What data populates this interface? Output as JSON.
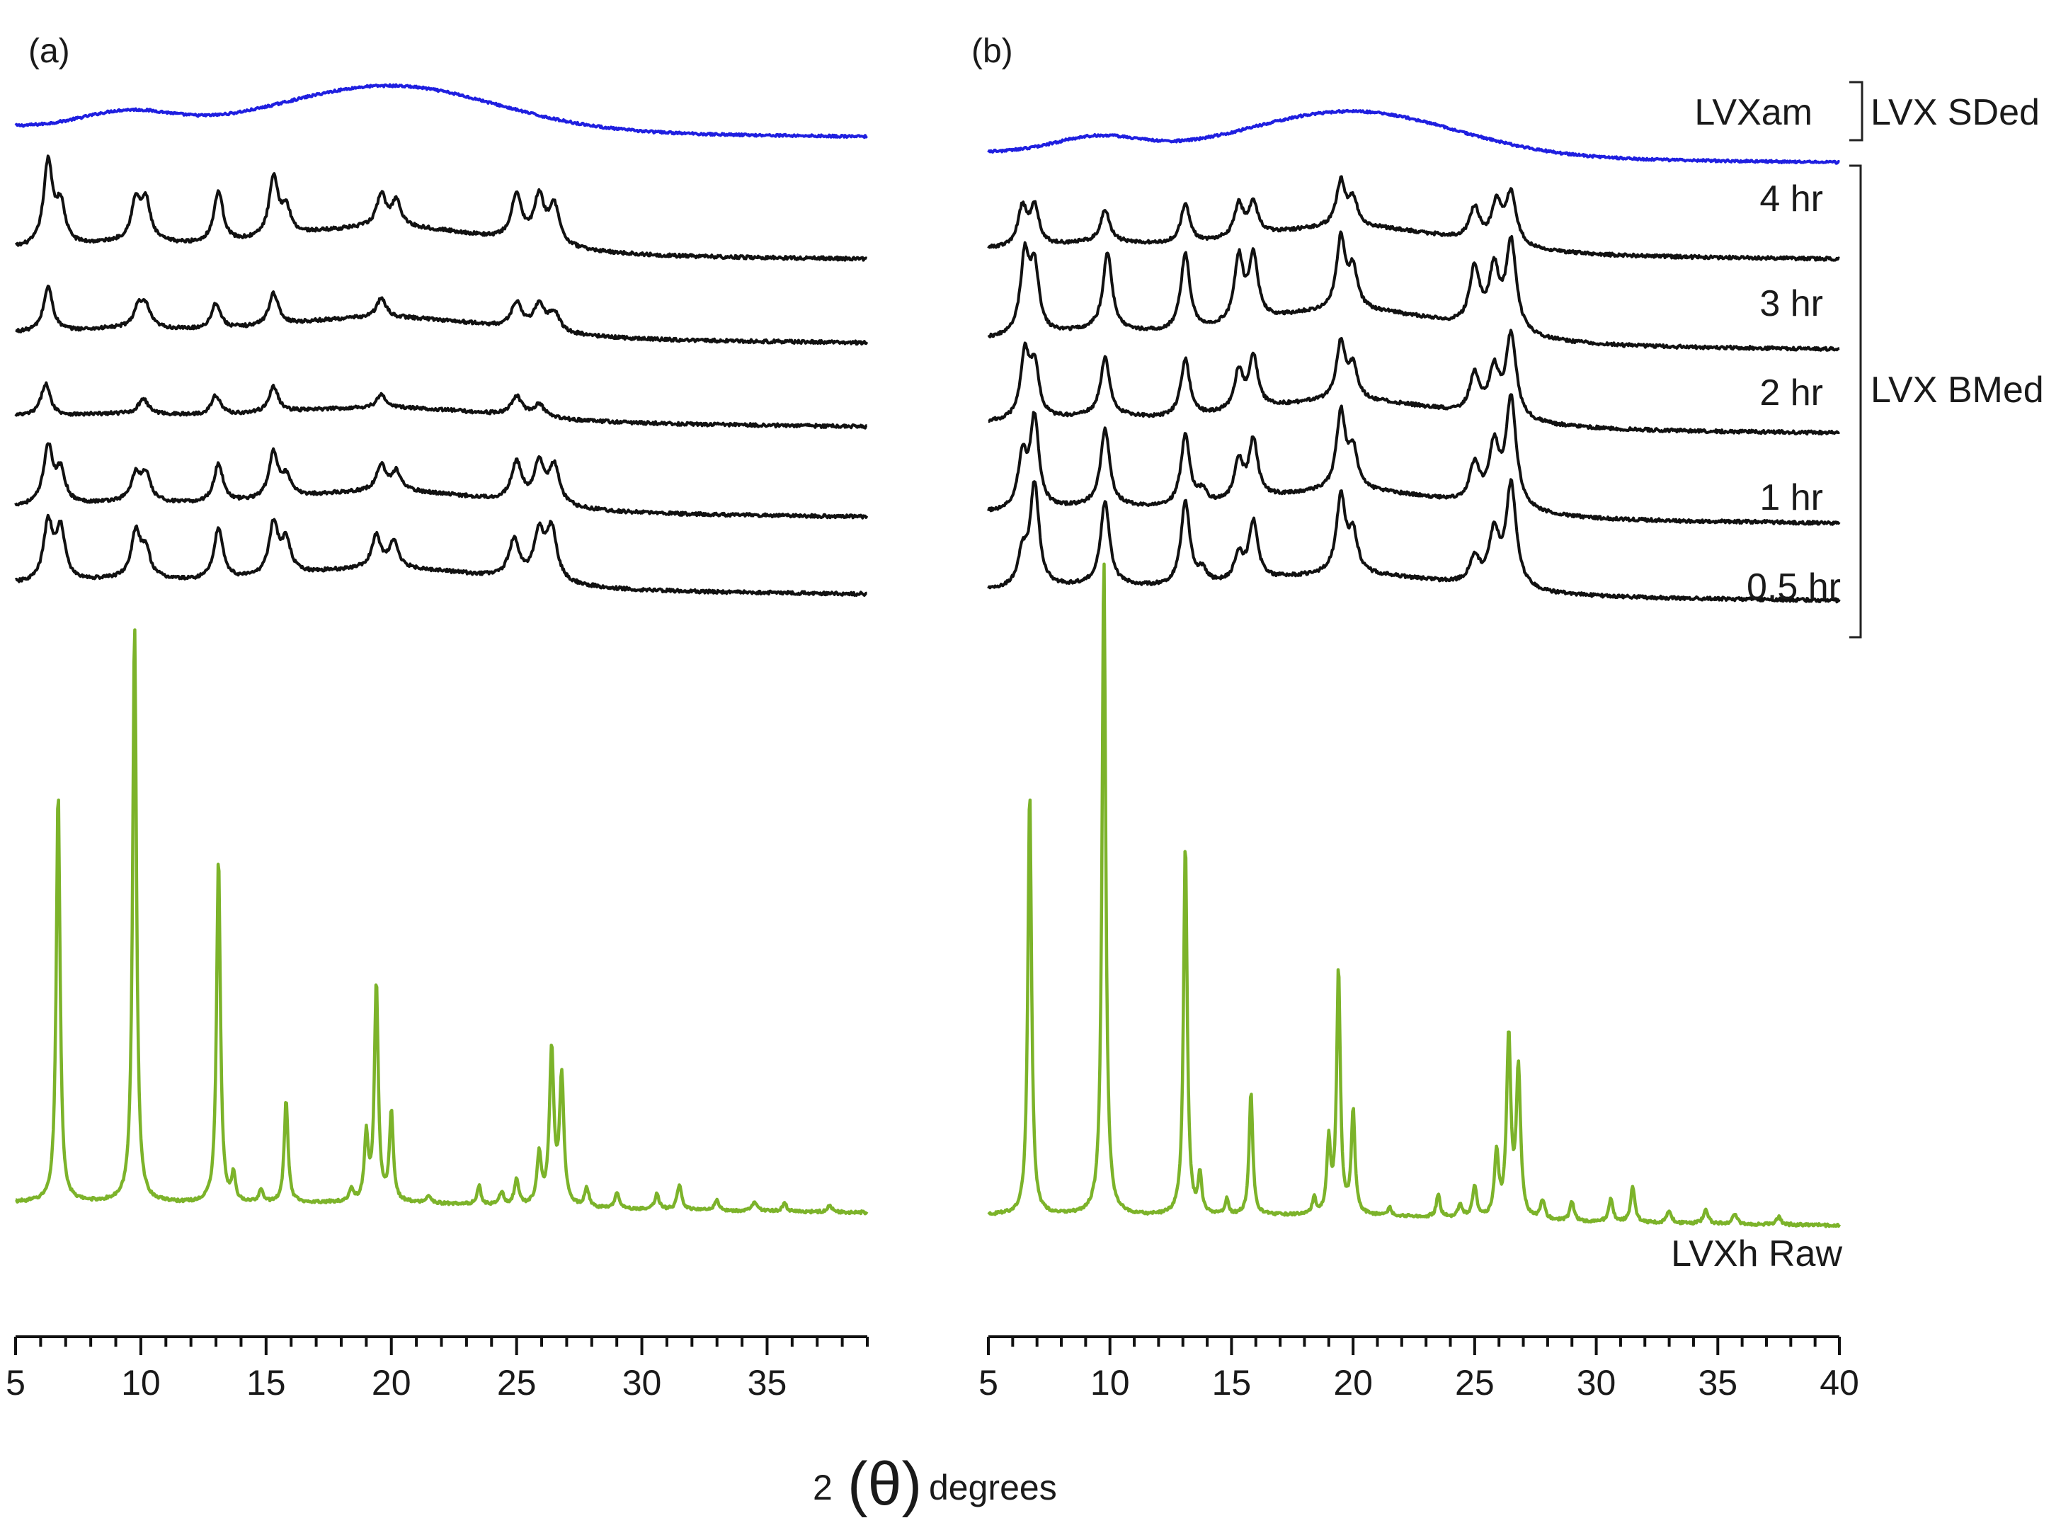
{
  "figure": {
    "xlabel_prefix": "2",
    "xlabel_symbol": "(θ)",
    "xlabel_suffix": "degrees",
    "colors": {
      "amorphous": "#1f1fe0",
      "milled": "#111111",
      "raw": "#7cb32a",
      "axis": "#111111"
    }
  },
  "chart_data": [
    {
      "type": "line",
      "panel_label": "(a)",
      "xlim": [
        5,
        39
      ],
      "xticks": [
        5,
        10,
        15,
        20,
        25,
        30,
        35
      ],
      "minor_step": 1,
      "series_order": [
        "LVXam",
        "4 hr",
        "3 hr",
        "2 hr",
        "1 hr",
        "0.5 hr",
        "LVXh Raw"
      ],
      "series": [
        {
          "name": "LVXam",
          "style": "amorphous",
          "baseline_ylevel": 0.065,
          "hump": 0.035,
          "peaks": []
        },
        {
          "name": "4 hr",
          "style": "milled",
          "baseline_ylevel": 0.16,
          "hump": 0.02,
          "peaks": [
            [
              6.3,
              0.065
            ],
            [
              6.8,
              0.03
            ],
            [
              9.8,
              0.03
            ],
            [
              10.2,
              0.03
            ],
            [
              13.1,
              0.04
            ],
            [
              15.3,
              0.045
            ],
            [
              15.8,
              0.02
            ],
            [
              19.6,
              0.025
            ],
            [
              20.2,
              0.02
            ],
            [
              25.0,
              0.035
            ],
            [
              25.9,
              0.035
            ],
            [
              26.5,
              0.03
            ]
          ]
        },
        {
          "name": "3 hr",
          "style": "milled",
          "baseline_ylevel": 0.225,
          "hump": 0.015,
          "peaks": [
            [
              6.3,
              0.035
            ],
            [
              9.9,
              0.015
            ],
            [
              10.2,
              0.015
            ],
            [
              13.0,
              0.02
            ],
            [
              15.3,
              0.025
            ],
            [
              19.6,
              0.015
            ],
            [
              25.0,
              0.02
            ],
            [
              25.9,
              0.02
            ],
            [
              26.5,
              0.015
            ]
          ]
        },
        {
          "name": "2 hr",
          "style": "milled",
          "baseline_ylevel": 0.29,
          "hump": 0.01,
          "peaks": [
            [
              6.2,
              0.025
            ],
            [
              10.1,
              0.012
            ],
            [
              13.0,
              0.015
            ],
            [
              15.3,
              0.02
            ],
            [
              19.6,
              0.01
            ],
            [
              25.0,
              0.015
            ],
            [
              25.9,
              0.01
            ]
          ]
        },
        {
          "name": "1 hr",
          "style": "milled",
          "baseline_ylevel": 0.36,
          "hump": 0.015,
          "peaks": [
            [
              6.3,
              0.045
            ],
            [
              6.8,
              0.025
            ],
            [
              9.8,
              0.02
            ],
            [
              10.2,
              0.02
            ],
            [
              13.1,
              0.03
            ],
            [
              15.3,
              0.035
            ],
            [
              15.8,
              0.015
            ],
            [
              19.6,
              0.02
            ],
            [
              20.2,
              0.015
            ],
            [
              25.0,
              0.03
            ],
            [
              25.9,
              0.03
            ],
            [
              26.5,
              0.03
            ]
          ]
        },
        {
          "name": "0.5 hr",
          "style": "milled",
          "baseline_ylevel": 0.42,
          "hump": 0.015,
          "peaks": [
            [
              6.3,
              0.045
            ],
            [
              6.8,
              0.04
            ],
            [
              9.8,
              0.035
            ],
            [
              10.2,
              0.02
            ],
            [
              13.1,
              0.04
            ],
            [
              15.3,
              0.04
            ],
            [
              15.8,
              0.025
            ],
            [
              19.4,
              0.025
            ],
            [
              20.1,
              0.02
            ],
            [
              24.9,
              0.03
            ],
            [
              25.9,
              0.035
            ],
            [
              26.4,
              0.04
            ]
          ]
        },
        {
          "name": "LVXh Raw",
          "style": "raw",
          "baseline_ylevel": 0.9,
          "hump": 0.003,
          "peaks": [
            [
              6.7,
              0.32
            ],
            [
              9.75,
              0.45
            ],
            [
              13.1,
              0.27
            ],
            [
              13.7,
              0.02
            ],
            [
              14.8,
              0.01
            ],
            [
              15.8,
              0.08
            ],
            [
              18.4,
              0.01
            ],
            [
              19.0,
              0.05
            ],
            [
              19.4,
              0.17
            ],
            [
              20.0,
              0.07
            ],
            [
              21.5,
              0.006
            ],
            [
              23.5,
              0.015
            ],
            [
              24.4,
              0.01
            ],
            [
              25.0,
              0.02
            ],
            [
              25.9,
              0.04
            ],
            [
              26.4,
              0.12
            ],
            [
              26.8,
              0.1
            ],
            [
              27.8,
              0.015
            ],
            [
              29.0,
              0.012
            ],
            [
              30.6,
              0.012
            ],
            [
              31.5,
              0.02
            ],
            [
              33.0,
              0.008
            ],
            [
              34.5,
              0.008
            ],
            [
              35.7,
              0.006
            ],
            [
              37.5,
              0.005
            ]
          ]
        }
      ]
    },
    {
      "type": "line",
      "panel_label": "(b)",
      "xlim": [
        5,
        40
      ],
      "xticks": [
        5,
        10,
        15,
        20,
        25,
        30,
        35,
        40
      ],
      "minor_step": 1,
      "series_order": [
        "LVXam",
        "4 hr",
        "3 hr",
        "2 hr",
        "1 hr",
        "0.5 hr",
        "LVXh Raw"
      ],
      "series": [
        {
          "name": "LVXam",
          "style": "amorphous",
          "baseline_ylevel": 0.085,
          "hump": 0.035,
          "peaks": []
        },
        {
          "name": "4 hr",
          "style": "milled",
          "baseline_ylevel": 0.16,
          "hump": 0.02,
          "peaks": [
            [
              6.4,
              0.03
            ],
            [
              6.9,
              0.03
            ],
            [
              9.8,
              0.025
            ],
            [
              13.1,
              0.03
            ],
            [
              15.3,
              0.025
            ],
            [
              15.9,
              0.025
            ],
            [
              19.5,
              0.035
            ],
            [
              20.0,
              0.02
            ],
            [
              25.0,
              0.025
            ],
            [
              25.9,
              0.03
            ],
            [
              26.5,
              0.04
            ]
          ]
        },
        {
          "name": "3 hr",
          "style": "milled",
          "baseline_ylevel": 0.23,
          "hump": 0.025,
          "peaks": [
            [
              6.5,
              0.06
            ],
            [
              6.9,
              0.05
            ],
            [
              9.9,
              0.06
            ],
            [
              13.1,
              0.06
            ],
            [
              15.3,
              0.05
            ],
            [
              15.9,
              0.05
            ],
            [
              19.5,
              0.055
            ],
            [
              20.0,
              0.03
            ],
            [
              25.0,
              0.045
            ],
            [
              25.8,
              0.045
            ],
            [
              26.5,
              0.07
            ]
          ]
        },
        {
          "name": "2 hr",
          "style": "milled",
          "baseline_ylevel": 0.295,
          "hump": 0.02,
          "peaks": [
            [
              6.5,
              0.05
            ],
            [
              6.9,
              0.04
            ],
            [
              9.8,
              0.045
            ],
            [
              13.1,
              0.045
            ],
            [
              15.3,
              0.03
            ],
            [
              15.9,
              0.04
            ],
            [
              19.5,
              0.045
            ],
            [
              20.0,
              0.025
            ],
            [
              25.0,
              0.03
            ],
            [
              25.8,
              0.035
            ],
            [
              26.5,
              0.065
            ]
          ]
        },
        {
          "name": "1 hr",
          "style": "milled",
          "baseline_ylevel": 0.365,
          "hump": 0.02,
          "peaks": [
            [
              6.4,
              0.04
            ],
            [
              6.9,
              0.07
            ],
            [
              9.8,
              0.06
            ],
            [
              13.1,
              0.055
            ],
            [
              13.8,
              0.01
            ],
            [
              15.3,
              0.03
            ],
            [
              15.9,
              0.045
            ],
            [
              19.5,
              0.06
            ],
            [
              20.0,
              0.03
            ],
            [
              25.0,
              0.03
            ],
            [
              25.8,
              0.045
            ],
            [
              26.5,
              0.085
            ]
          ]
        },
        {
          "name": "0.5 hr",
          "style": "milled",
          "baseline_ylevel": 0.425,
          "hump": 0.015,
          "peaks": [
            [
              6.4,
              0.025
            ],
            [
              6.9,
              0.08
            ],
            [
              9.8,
              0.065
            ],
            [
              13.1,
              0.065
            ],
            [
              13.8,
              0.01
            ],
            [
              15.3,
              0.02
            ],
            [
              15.9,
              0.045
            ],
            [
              19.5,
              0.06
            ],
            [
              20.0,
              0.03
            ],
            [
              25.0,
              0.02
            ],
            [
              25.8,
              0.04
            ],
            [
              26.5,
              0.08
            ]
          ]
        },
        {
          "name": "LVXh Raw",
          "style": "raw",
          "baseline_ylevel": 0.91,
          "hump": 0.003,
          "peaks": [
            [
              6.7,
              0.33
            ],
            [
              9.75,
              0.51
            ],
            [
              13.1,
              0.29
            ],
            [
              13.7,
              0.03
            ],
            [
              14.8,
              0.012
            ],
            [
              15.8,
              0.095
            ],
            [
              18.4,
              0.012
            ],
            [
              19.0,
              0.055
            ],
            [
              19.4,
              0.19
            ],
            [
              20.0,
              0.08
            ],
            [
              21.5,
              0.006
            ],
            [
              23.5,
              0.018
            ],
            [
              24.4,
              0.01
            ],
            [
              25.0,
              0.025
            ],
            [
              25.9,
              0.05
            ],
            [
              26.4,
              0.14
            ],
            [
              26.8,
              0.115
            ],
            [
              27.8,
              0.015
            ],
            [
              29.0,
              0.015
            ],
            [
              30.6,
              0.018
            ],
            [
              31.5,
              0.028
            ],
            [
              33.0,
              0.01
            ],
            [
              34.5,
              0.012
            ],
            [
              35.7,
              0.008
            ],
            [
              37.5,
              0.006
            ]
          ]
        }
      ],
      "annotations": [
        {
          "text": "LVXam",
          "series": "LVXam"
        },
        {
          "text": "4 hr",
          "series": "4 hr"
        },
        {
          "text": "3 hr",
          "series": "3 hr"
        },
        {
          "text": "2 hr",
          "series": "2 hr"
        },
        {
          "text": "1 hr",
          "series": "1 hr"
        },
        {
          "text": "0.5 hr",
          "series": "0.5 hr"
        },
        {
          "text": "LVXh Raw",
          "series": "LVXh Raw"
        }
      ],
      "group_labels": [
        {
          "text": "LVX SDed",
          "covers": [
            "LVXam"
          ]
        },
        {
          "text": "LVX BMed",
          "covers": [
            "4 hr",
            "3 hr",
            "2 hr",
            "1 hr",
            "0.5 hr"
          ]
        }
      ]
    }
  ]
}
